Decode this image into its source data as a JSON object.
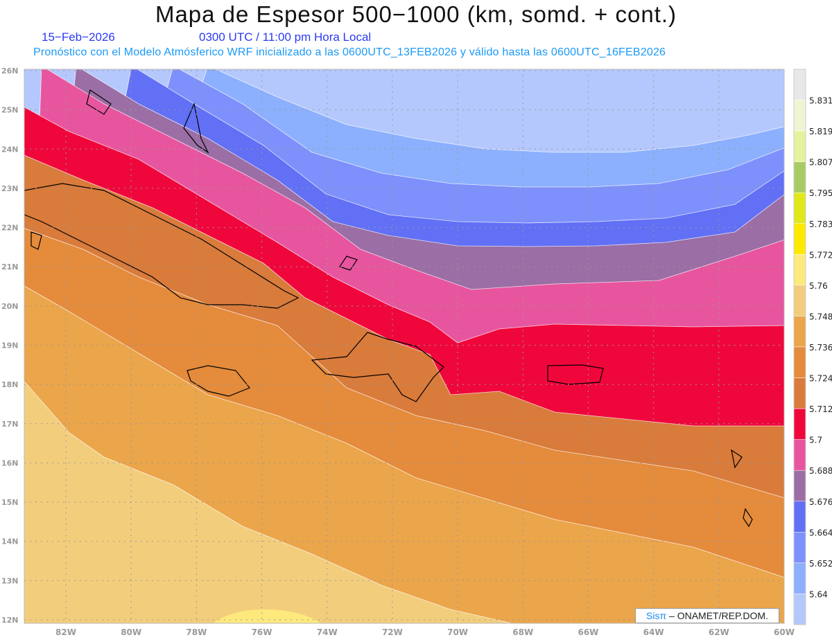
{
  "header": {
    "title": "Mapa de Espesor 500−1000 (km, somd. + cont.)",
    "date": "15−Feb−2026",
    "time": "0300 UTC / 11:00 pm Hora Local",
    "forecast": "Pronóstico con el Modelo Atmósferico WRF inicializado a las 0600UTC_13FEB2026 y válido hasta las  0600UTC_16FEB2026"
  },
  "axes": {
    "lon_labels": [
      "82W",
      "80W",
      "78W",
      "76W",
      "74W",
      "72W",
      "70W",
      "68W",
      "66W",
      "64W",
      "62W",
      "60W"
    ],
    "lat_labels": [
      "26N",
      "25N",
      "24N",
      "23N",
      "22N",
      "21N",
      "20N",
      "19N",
      "18N",
      "17N",
      "16N",
      "15N",
      "14N",
      "13N",
      "12N"
    ]
  },
  "colorbar": {
    "colors": [
      "#e8e8e8",
      "#eef5d3",
      "#e3f39e",
      "#a9cb66",
      "#e0e81a",
      "#ffe900",
      "#fde97c",
      "#f2cd7c",
      "#eba54a",
      "#e48b3c",
      "#d97b3b",
      "#ef073c",
      "#e8559f",
      "#9b6ea5",
      "#6270f5",
      "#7e90fb",
      "#8cb0fd",
      "#b5c8fd"
    ],
    "labels": [
      "5.831",
      "5.819",
      "5.807",
      "5.795",
      "5.783",
      "5.772",
      "5.76",
      "5.748",
      "5.736",
      "5.724",
      "5.712",
      "5.7",
      "5.688",
      "5.676",
      "5.664",
      "5.652",
      "5.64"
    ]
  },
  "credit": {
    "brand": "Sisπ",
    "text": " –  ONAMET/REP.DOM."
  }
}
